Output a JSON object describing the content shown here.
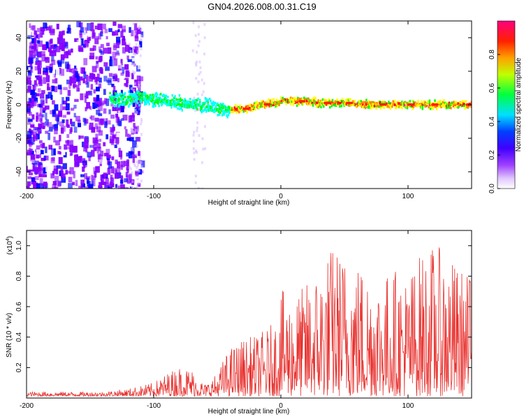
{
  "figure_title": "GN04.2026.008.00.31.C19",
  "chart_data": [
    {
      "type": "heatmap",
      "xlabel": "Height of straight line (km)",
      "ylabel": "Frequency (Hz)",
      "xlim": [
        -200,
        150
      ],
      "ylim": [
        -50,
        50
      ],
      "x_ticks": [
        -200,
        -100,
        0,
        100
      ],
      "y_ticks": [
        -40,
        -20,
        0,
        20,
        40
      ],
      "colorbar": {
        "label": "Normalized spectral amplitude",
        "range": [
          0,
          1
        ],
        "ticks": [
          "0.0",
          "0.2",
          "0.4",
          "0.6",
          "0.8"
        ],
        "colors": [
          "#ffffff",
          "#8800ff",
          "#0000ff",
          "#00ffff",
          "#00ff00",
          "#ffff00",
          "#ff8800",
          "#ff0000",
          "#ff00aa"
        ]
      },
      "ridge": {
        "x": [
          -130,
          -110,
          -90,
          -70,
          -55,
          -45,
          -35,
          -25,
          -15,
          -5,
          0,
          10,
          20,
          30,
          50,
          70,
          90,
          110,
          130,
          150
        ],
        "freq": [
          3,
          4,
          2,
          0,
          -1,
          -3,
          -3,
          -2,
          0,
          1,
          2,
          2,
          2,
          1,
          1,
          0,
          0,
          0,
          0,
          0
        ]
      }
    },
    {
      "type": "line",
      "xlabel": "Height of straight line (km)",
      "ylabel": "SNR (10 * v/v)",
      "y_multiplier": "(x10",
      "y_multiplier_exp": "4",
      "xlim": [
        -200,
        150
      ],
      "ylim": [
        0,
        1.1
      ],
      "x_ticks": [
        -200,
        -100,
        0,
        100
      ],
      "y_ticks": [
        "0.2",
        "0.4",
        "0.6",
        "0.8",
        "1.0"
      ],
      "color": "#e8312e",
      "envelope": {
        "x": [
          -200,
          -140,
          -120,
          -100,
          -90,
          -80,
          -70,
          -60,
          -50,
          -45,
          -40,
          -30,
          -20,
          -10,
          -5,
          0,
          10,
          20,
          30,
          40,
          50,
          60,
          70,
          80,
          90,
          100,
          110,
          120,
          130,
          140,
          150
        ],
        "y": [
          0.03,
          0.03,
          0.05,
          0.09,
          0.15,
          0.2,
          0.18,
          0.08,
          0.15,
          0.25,
          0.32,
          0.38,
          0.4,
          0.45,
          0.5,
          0.7,
          0.65,
          0.75,
          0.85,
          1.0,
          0.95,
          0.9,
          0.85,
          0.8,
          0.85,
          0.8,
          0.95,
          1.0,
          0.95,
          0.85,
          0.8
        ]
      }
    }
  ]
}
